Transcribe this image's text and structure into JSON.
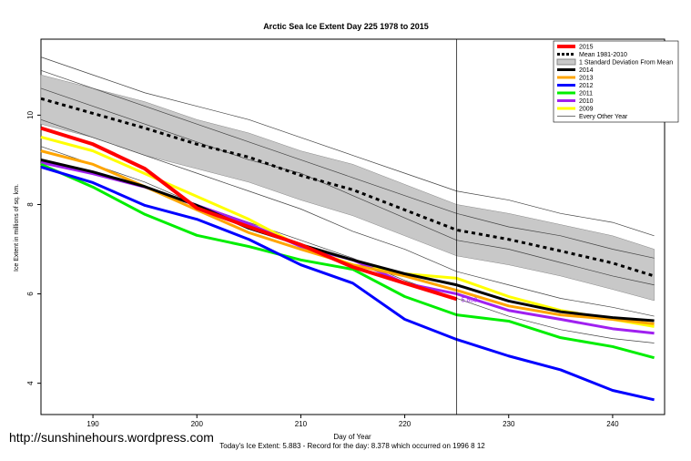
{
  "chart_data": {
    "type": "line",
    "title": "Arctic Sea Ice Extent Day 225 1978 to 2015",
    "x_label": "Day of Year",
    "y_label": "Ice Extent in millions of sq. km.",
    "footer": "Today's Ice Extent: 5.883  - Record for the day: 8.378 which occurred on 1996 8 12",
    "watermark": "http://sunshinehours.wordpress.com",
    "annotation": "5.883",
    "x": [
      185,
      190,
      195,
      200,
      205,
      210,
      215,
      220,
      225,
      230,
      235,
      240,
      244
    ],
    "xlim": [
      185,
      245
    ],
    "xticks": [
      190,
      200,
      210,
      220,
      230,
      240
    ],
    "ylim": [
      3.3,
      11.7
    ],
    "yticks": [
      4,
      6,
      8,
      10
    ],
    "vline": 225,
    "band": {
      "name": "1 Standard Deviation From Mean",
      "color": "#c8c8c8",
      "upper": [
        10.9,
        10.6,
        10.3,
        9.9,
        9.6,
        9.2,
        8.9,
        8.45,
        8.0,
        7.8,
        7.55,
        7.3,
        7.0
      ],
      "lower": [
        9.8,
        9.5,
        9.1,
        8.8,
        8.5,
        8.1,
        7.75,
        7.3,
        6.85,
        6.65,
        6.4,
        6.1,
        5.85
      ]
    },
    "other": {
      "name": "Every Other Year",
      "color": "#444444",
      "lines": [
        [
          11.3,
          10.9,
          10.5,
          10.2,
          9.9,
          9.5,
          9.1,
          8.7,
          8.3,
          8.1,
          7.8,
          7.6,
          7.3
        ],
        [
          11.0,
          10.6,
          10.2,
          9.8,
          9.4,
          9.0,
          8.6,
          8.2,
          7.8,
          7.5,
          7.3,
          7.0,
          6.8
        ],
        [
          10.6,
          10.2,
          9.8,
          9.4,
          9.0,
          8.7,
          8.2,
          7.7,
          7.2,
          7.0,
          6.7,
          6.4,
          6.2
        ],
        [
          9.9,
          9.5,
          9.1,
          8.7,
          8.3,
          7.9,
          7.4,
          7.0,
          6.5,
          6.2,
          5.9,
          5.7,
          5.5
        ],
        [
          9.3,
          8.9,
          8.5,
          8.0,
          7.6,
          7.2,
          6.8,
          6.3,
          5.9,
          5.5,
          5.2,
          5.0,
          4.9
        ]
      ]
    },
    "series": [
      {
        "name": "2015",
        "color": "#ff0000",
        "width": 4,
        "values": [
          9.71,
          9.35,
          8.8,
          7.92,
          7.5,
          7.1,
          6.6,
          6.24,
          5.883,
          null,
          null,
          null,
          null
        ]
      },
      {
        "name": "Mean 1981-2010",
        "color": "#000000",
        "width": 3,
        "dash": true,
        "values": [
          10.37,
          10.04,
          9.71,
          9.35,
          9.06,
          8.65,
          8.33,
          7.88,
          7.43,
          7.22,
          6.96,
          6.69,
          6.4
        ]
      },
      {
        "name": "2014",
        "color": "#000000",
        "width": 3,
        "values": [
          9.0,
          8.73,
          8.4,
          7.98,
          7.47,
          7.1,
          6.76,
          6.45,
          6.2,
          5.84,
          5.6,
          5.47,
          5.4
        ]
      },
      {
        "name": "2013",
        "color": "#ffa500",
        "width": 3,
        "values": [
          9.2,
          8.9,
          8.4,
          7.88,
          7.37,
          7.0,
          6.65,
          6.4,
          6.08,
          5.73,
          5.53,
          5.43,
          5.33
        ]
      },
      {
        "name": "2012",
        "color": "#0000ff",
        "width": 3,
        "values": [
          8.84,
          8.49,
          7.98,
          7.67,
          7.22,
          6.65,
          6.24,
          5.43,
          4.98,
          4.61,
          4.3,
          3.84,
          3.63
        ]
      },
      {
        "name": "2011",
        "color": "#00ee00",
        "width": 3,
        "values": [
          8.9,
          8.39,
          7.78,
          7.31,
          7.06,
          6.76,
          6.55,
          5.94,
          5.53,
          5.39,
          5.02,
          4.82,
          4.57
        ]
      },
      {
        "name": "2010",
        "color": "#a020f0",
        "width": 3,
        "values": [
          8.94,
          8.69,
          8.39,
          7.98,
          7.57,
          7.06,
          6.76,
          6.24,
          6.0,
          5.63,
          5.43,
          5.22,
          5.12
        ]
      },
      {
        "name": "2009",
        "color": "#ffff00",
        "width": 3,
        "values": [
          9.51,
          9.2,
          8.69,
          8.18,
          7.67,
          7.06,
          6.65,
          6.45,
          6.35,
          5.94,
          5.63,
          5.43,
          5.27
        ]
      }
    ]
  }
}
